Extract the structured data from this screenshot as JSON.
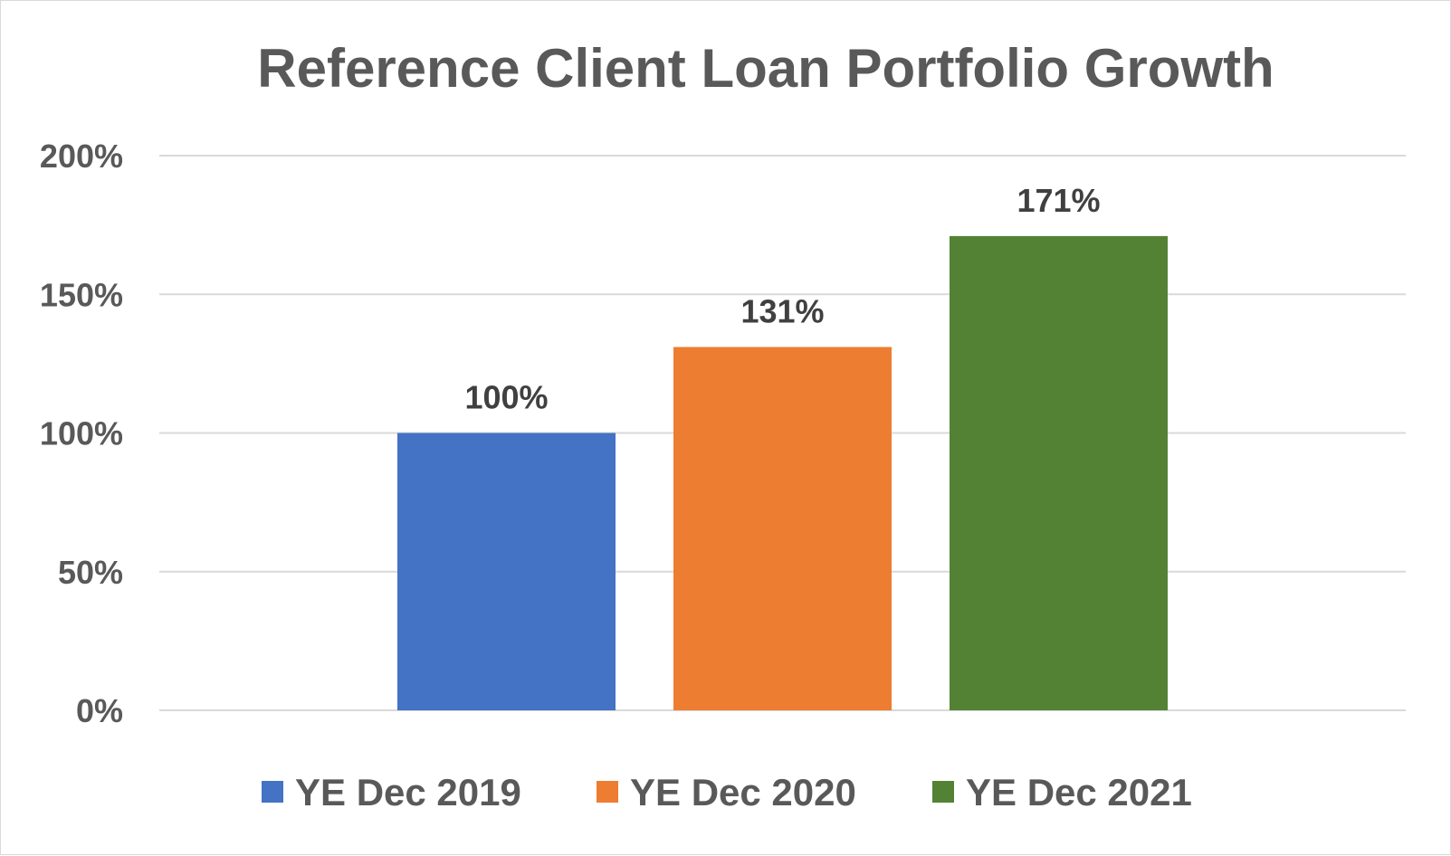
{
  "chart_data": {
    "type": "bar",
    "title": "Reference Client Loan Portfolio Growth",
    "xlabel": "",
    "ylabel": "",
    "ylim": [
      0,
      200
    ],
    "y_ticks": [
      0,
      50,
      100,
      150,
      200
    ],
    "y_tick_labels": [
      "0%",
      "50%",
      "100%",
      "150%",
      "200%"
    ],
    "grid": true,
    "legend_position": "bottom",
    "series": [
      {
        "name": "YE Dec 2019",
        "value": 100,
        "label": "100%",
        "color": "#4472c4"
      },
      {
        "name": "YE Dec 2020",
        "value": 131,
        "label": "131%",
        "color": "#ed7d31"
      },
      {
        "name": "YE Dec 2021",
        "value": 171,
        "label": "171%",
        "color": "#548235"
      }
    ]
  }
}
